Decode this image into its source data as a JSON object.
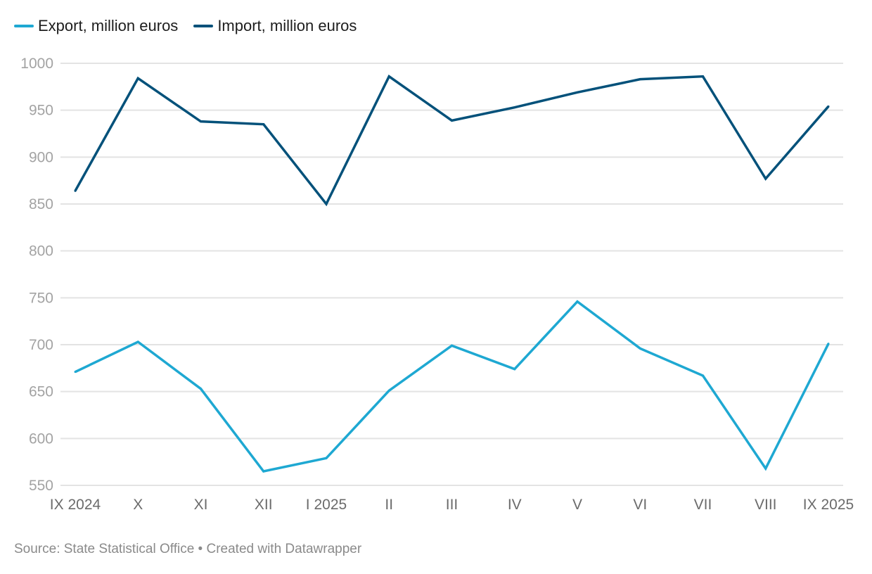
{
  "chart_data": {
    "type": "line",
    "title": "",
    "xlabel": "",
    "ylabel": "",
    "ylim": [
      550,
      1000
    ],
    "yticks": [
      1000,
      950,
      900,
      850,
      800,
      750,
      700,
      650,
      600,
      550
    ],
    "grid": true,
    "legend_position": "top-left",
    "categories": [
      "IX 2024",
      "X",
      "XI",
      "XII",
      "I 2025",
      "II",
      "III",
      "IV",
      "V",
      "VI",
      "VII",
      "VIII",
      "IX 2025"
    ],
    "series": [
      {
        "name": "Export, million euros",
        "color": "#1ea8d2",
        "values": [
          671,
          703,
          653,
          565,
          579,
          651,
          699,
          674,
          746,
          696,
          667,
          568,
          701
        ]
      },
      {
        "name": "Import, million euros",
        "color": "#03517a",
        "values": [
          864,
          984,
          938,
          935,
          850,
          986,
          939,
          953,
          969,
          983,
          986,
          877,
          954
        ]
      }
    ]
  },
  "footer": {
    "text": "Source: State Statistical Office • Created with Datawrapper"
  }
}
